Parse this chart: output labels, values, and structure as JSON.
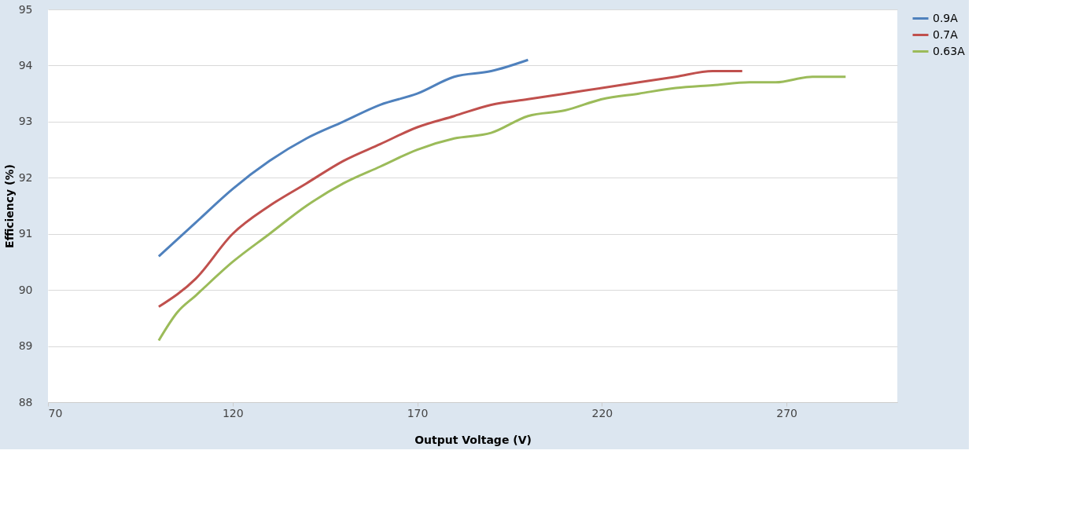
{
  "chart_data": {
    "type": "line",
    "xlabel": "Output Voltage (V)",
    "ylabel": "Efficiency (%)",
    "xlim": [
      70,
      300
    ],
    "xticks": [
      70,
      120,
      170,
      220,
      270
    ],
    "ylim": [
      88,
      95
    ],
    "yticks": [
      88,
      89,
      90,
      91,
      92,
      93,
      94,
      95
    ],
    "grid": "y",
    "legend": "right",
    "marker": "none",
    "line_style": "solid",
    "series": [
      {
        "name": "0.9A",
        "color": "#4f81bd",
        "x": [
          100,
          110,
          120,
          130,
          140,
          150,
          160,
          170,
          180,
          190,
          200
        ],
        "values": [
          90.6,
          91.2,
          91.8,
          92.3,
          92.7,
          93.0,
          93.3,
          93.5,
          93.8,
          93.9,
          94.1
        ]
      },
      {
        "name": "0.7A",
        "color": "#c0504d",
        "x": [
          100,
          110,
          120,
          130,
          140,
          150,
          160,
          170,
          180,
          190,
          200,
          210,
          220,
          230,
          240,
          250,
          258
        ],
        "values": [
          89.7,
          90.2,
          91.0,
          91.5,
          91.9,
          92.3,
          92.6,
          92.9,
          93.1,
          93.3,
          93.4,
          93.5,
          93.6,
          93.7,
          93.8,
          93.9,
          93.9
        ]
      },
      {
        "name": "0.63A",
        "color": "#9bbb59",
        "x": [
          100,
          105,
          110,
          120,
          130,
          140,
          150,
          160,
          170,
          180,
          190,
          200,
          210,
          220,
          230,
          240,
          250,
          260,
          267,
          277,
          286
        ],
        "values": [
          89.1,
          89.6,
          89.9,
          90.5,
          91.0,
          91.5,
          91.9,
          92.2,
          92.5,
          92.7,
          92.8,
          93.1,
          93.2,
          93.4,
          93.5,
          93.6,
          93.65,
          93.7,
          93.7,
          93.8,
          93.8
        ]
      }
    ]
  }
}
